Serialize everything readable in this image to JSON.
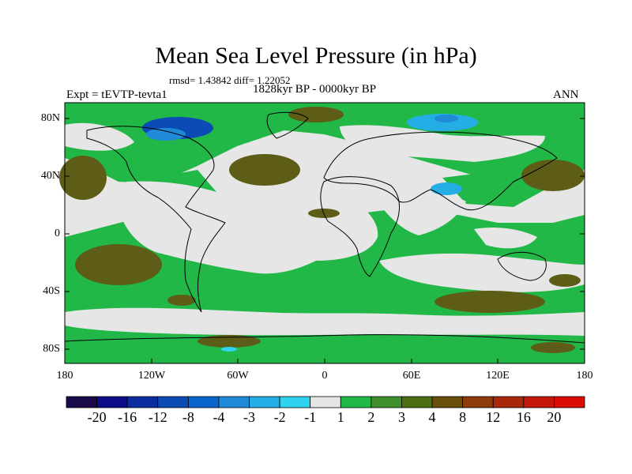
{
  "title": "Mean Sea Level Pressure (in hPa)",
  "stats": "rmsd= 1.43842 diff= 1.22052",
  "experiment": "Expt = tEVTP-tevta1",
  "period": "1828kyr BP - 0000kyr BP",
  "season": "ANN",
  "lat_labels": [
    "80N",
    "40N",
    "0",
    "40S",
    "80S"
  ],
  "lon_labels": [
    "180",
    "120W",
    "60W",
    "0",
    "60E",
    "120E",
    "180"
  ],
  "colorbar": {
    "colors": [
      "#1a0a4a",
      "#0c0c87",
      "#0a2c9e",
      "#0c4bb6",
      "#0a66cc",
      "#1e8ad8",
      "#25aee6",
      "#2fd3ef",
      "#e6e6e6",
      "#22b848",
      "#3f8f2c",
      "#4e6e14",
      "#6a4e0e",
      "#8c3b0a",
      "#a7280a",
      "#c4190a",
      "#dc0a05"
    ],
    "labels": [
      "-20",
      "-16",
      "-12",
      "-8",
      "-4",
      "-3",
      "-2",
      "-1",
      "1",
      "2",
      "3",
      "4",
      "8",
      "12",
      "16",
      "20"
    ]
  },
  "legend": {
    "neutral": "#e6e6e6",
    "pos_light": "#22b848",
    "pos_mid": "#3f8f2c",
    "pos_dark": "#5d5d18",
    "neg_light": "#25aee6",
    "neg_dark": "#0c4bb6"
  }
}
